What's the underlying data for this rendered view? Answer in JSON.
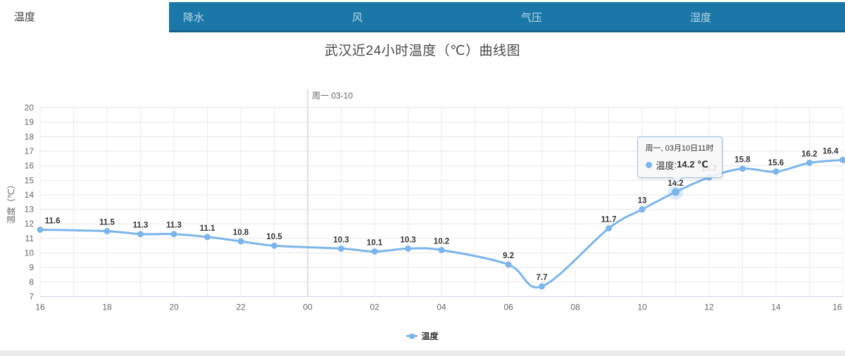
{
  "title": "武汉近24小时温度（℃）曲线图",
  "tabs": [
    {
      "key": "temperature",
      "label": "温度",
      "active": true
    },
    {
      "key": "precipitation",
      "label": "降水",
      "active": false
    },
    {
      "key": "wind",
      "label": "风",
      "active": false
    },
    {
      "key": "pressure",
      "label": "气压",
      "active": false
    },
    {
      "key": "humidity",
      "label": "湿度",
      "active": false
    }
  ],
  "colors": {
    "tab_bar_bg": "#1a77a8",
    "tab_text_inactive": "#b9d8e6",
    "tab_text_active": "#404040",
    "series": "#7cb5ec",
    "halo": "rgba(124,181,236,0.25)",
    "grid_h": "#e6e6e6",
    "grid_v": "#ececec",
    "axis_line": "#ccd6eb",
    "axis_text": "#666666",
    "data_label": "#333333",
    "title_text": "#4a4a4a",
    "divider_line": "#c5c5c5",
    "tooltip_bg": "rgba(247,247,247,0.88)",
    "tooltip_border": "#9bc1e8"
  },
  "chart_data": {
    "type": "line",
    "title": "武汉近24小时温度（℃）曲线图",
    "xlabel": "",
    "ylabel": "温度（℃）",
    "ylim": [
      7,
      20
    ],
    "y_ticks": [
      7,
      8,
      9,
      10,
      11,
      12,
      13,
      14,
      15,
      16,
      17,
      18,
      19,
      20
    ],
    "x_span_hours": 24,
    "x_ticks": [
      {
        "i": 0,
        "label": "16"
      },
      {
        "i": 2,
        "label": "18"
      },
      {
        "i": 4,
        "label": "20"
      },
      {
        "i": 6,
        "label": "22"
      },
      {
        "i": 8,
        "label": "00"
      },
      {
        "i": 10,
        "label": "02"
      },
      {
        "i": 12,
        "label": "04"
      },
      {
        "i": 14,
        "label": "06"
      },
      {
        "i": 16,
        "label": "08"
      },
      {
        "i": 18,
        "label": "10"
      },
      {
        "i": 20,
        "label": "12"
      },
      {
        "i": 22,
        "label": "14"
      },
      {
        "i": 24,
        "label": "16"
      }
    ],
    "grid": "on",
    "legend_position": "bottom-center",
    "day_divider": {
      "i": 8,
      "label": "周一 03-10"
    },
    "series": [
      {
        "name": "温度",
        "points": [
          {
            "i": 0,
            "v": 11.6,
            "label": "11.6"
          },
          {
            "i": 2,
            "v": 11.5,
            "label": "11.5"
          },
          {
            "i": 3,
            "v": 11.3,
            "label": "11.3"
          },
          {
            "i": 4,
            "v": 11.3,
            "label": "11.3"
          },
          {
            "i": 5,
            "v": 11.1,
            "label": "11.1"
          },
          {
            "i": 6,
            "v": 10.8,
            "label": "10.8"
          },
          {
            "i": 7,
            "v": 10.5,
            "label": "10.5"
          },
          {
            "i": 9,
            "v": 10.3,
            "label": "10.3"
          },
          {
            "i": 10,
            "v": 10.1,
            "label": "10.1"
          },
          {
            "i": 11,
            "v": 10.3,
            "label": "10.3"
          },
          {
            "i": 12,
            "v": 10.2,
            "label": "10.2"
          },
          {
            "i": 14,
            "v": 9.2,
            "label": "9.2"
          },
          {
            "i": 15,
            "v": 7.7,
            "label": "7.7"
          },
          {
            "i": 17,
            "v": 11.7,
            "label": "11.7"
          },
          {
            "i": 18,
            "v": 13,
            "label": "13"
          },
          {
            "i": 19,
            "v": 14.2,
            "label": "14.2"
          },
          {
            "i": 20,
            "v": 15.2,
            "label": "15.2"
          },
          {
            "i": 21,
            "v": 15.8,
            "label": "15.8"
          },
          {
            "i": 22,
            "v": 15.6,
            "label": "15.6"
          },
          {
            "i": 23,
            "v": 16.2,
            "label": "16.2"
          },
          {
            "i": 24,
            "v": 16.4,
            "label": "16.4"
          }
        ]
      }
    ]
  },
  "legend": {
    "label": "温度"
  },
  "tooltip": {
    "visible": true,
    "point_i": 19,
    "header": "周一, 03月10日11时",
    "series_name": "温度",
    "value": "14.2 ℃"
  }
}
